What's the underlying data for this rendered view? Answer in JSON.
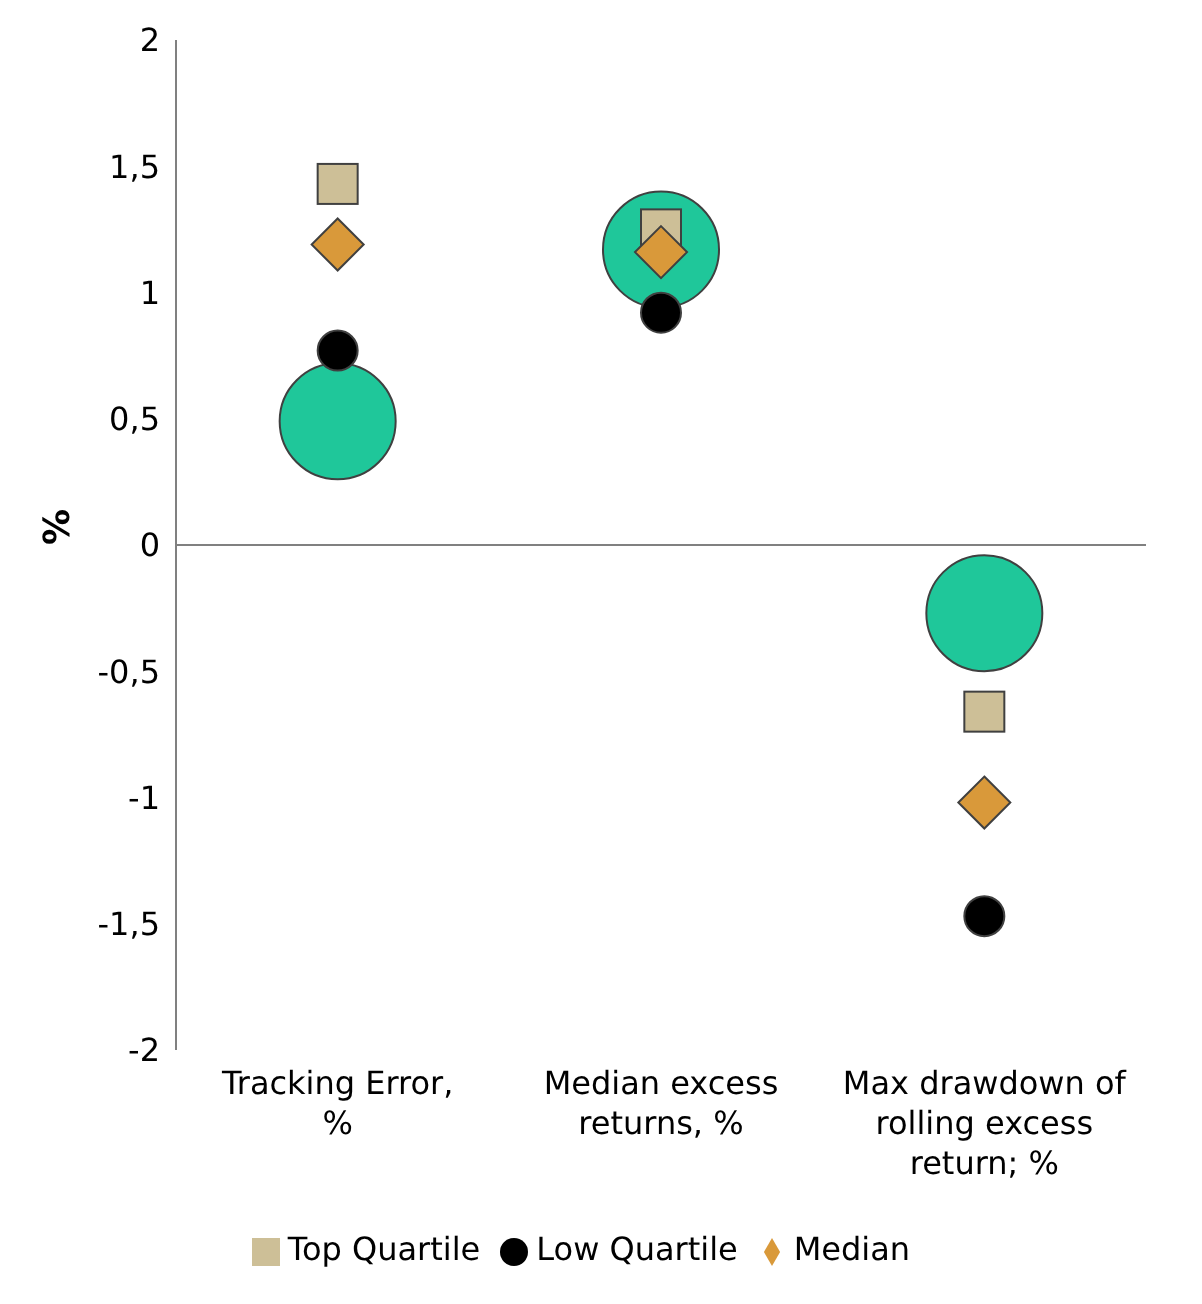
{
  "chart_data": {
    "type": "scatter",
    "ylabel": "%",
    "categories": [
      "Tracking Error, %",
      "Median excess returns, %",
      "Max drawdown of rolling excess return; %"
    ],
    "series": [
      {
        "color": "#1fc79a",
        "marker": "circle",
        "values": [
          0.49,
          1.17,
          -0.27
        ]
      },
      {
        "name": "Top Quartile",
        "color": "#cdbf97",
        "marker": "square",
        "values": [
          1.43,
          1.25,
          -0.66
        ]
      },
      {
        "name": "Low Quartile",
        "color": "#000000",
        "marker": "circle",
        "values": [
          0.77,
          0.92,
          -1.47
        ]
      },
      {
        "name": "Median",
        "color": "#d9993a",
        "marker": "diamond",
        "values": [
          1.19,
          1.16,
          -1.02
        ]
      }
    ],
    "ylim": [
      -2,
      2
    ],
    "yticks": [
      -2,
      {
        "value": -1.5,
        "label": "-1,5"
      },
      -1,
      {
        "value": -0.5,
        "label": "-0,5"
      },
      0,
      {
        "value": 0.5,
        "label": "0,5"
      },
      1,
      {
        "value": 1.5,
        "label": "1,5"
      },
      2
    ],
    "legend": "bottom"
  }
}
